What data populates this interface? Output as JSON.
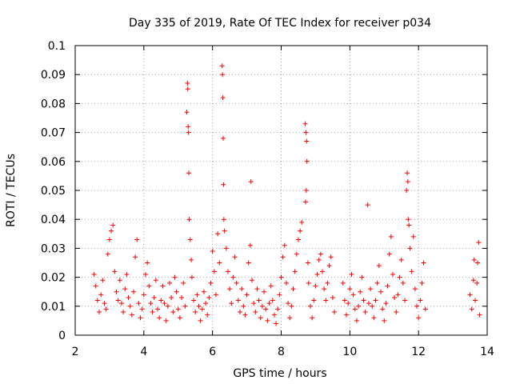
{
  "chart_data": {
    "type": "scatter",
    "title": "Day 335 of 2019, Rate Of TEC Index for receiver p034",
    "xlabel": "GPS time / hours",
    "ylabel": "ROTI / TECUs",
    "xlim": [
      2,
      14
    ],
    "ylim": [
      0,
      0.1
    ],
    "xticks": [
      "2",
      "4",
      "6",
      "8",
      "10",
      "12",
      "14"
    ],
    "yticks": [
      "0",
      "0.01",
      "0.02",
      "0.03",
      "0.04",
      "0.05",
      "0.06",
      "0.07",
      "0.08",
      "0.09",
      "0.1"
    ],
    "grid": true,
    "marker": "plus",
    "series": [
      {
        "name": "p034",
        "color": "#ff0000",
        "points": [
          [
            2.55,
            0.021
          ],
          [
            2.6,
            0.017
          ],
          [
            2.65,
            0.012
          ],
          [
            2.7,
            0.008
          ],
          [
            2.75,
            0.014
          ],
          [
            2.8,
            0.019
          ],
          [
            2.85,
            0.011
          ],
          [
            2.9,
            0.009
          ],
          [
            2.95,
            0.028
          ],
          [
            3.0,
            0.033
          ],
          [
            3.05,
            0.036
          ],
          [
            3.1,
            0.038
          ],
          [
            3.15,
            0.022
          ],
          [
            3.2,
            0.015
          ],
          [
            3.25,
            0.012
          ],
          [
            3.3,
            0.019
          ],
          [
            3.35,
            0.011
          ],
          [
            3.4,
            0.008
          ],
          [
            3.45,
            0.016
          ],
          [
            3.5,
            0.021
          ],
          [
            3.55,
            0.013
          ],
          [
            3.6,
            0.01
          ],
          [
            3.65,
            0.007
          ],
          [
            3.7,
            0.015
          ],
          [
            3.75,
            0.027
          ],
          [
            3.8,
            0.033
          ],
          [
            3.85,
            0.011
          ],
          [
            3.9,
            0.006
          ],
          [
            3.95,
            0.009
          ],
          [
            4.0,
            0.014
          ],
          [
            4.05,
            0.021
          ],
          [
            4.1,
            0.025
          ],
          [
            4.15,
            0.017
          ],
          [
            4.2,
            0.011
          ],
          [
            4.25,
            0.008
          ],
          [
            4.3,
            0.013
          ],
          [
            4.35,
            0.019
          ],
          [
            4.4,
            0.009
          ],
          [
            4.45,
            0.006
          ],
          [
            4.5,
            0.012
          ],
          [
            4.55,
            0.017
          ],
          [
            4.6,
            0.011
          ],
          [
            4.65,
            0.005
          ],
          [
            4.7,
            0.01
          ],
          [
            4.75,
            0.018
          ],
          [
            4.8,
            0.013
          ],
          [
            4.85,
            0.008
          ],
          [
            4.9,
            0.02
          ],
          [
            4.95,
            0.015
          ],
          [
            5.0,
            0.009
          ],
          [
            5.05,
            0.006
          ],
          [
            5.1,
            0.013
          ],
          [
            5.15,
            0.018
          ],
          [
            5.2,
            0.01
          ],
          [
            5.25,
            0.077
          ],
          [
            5.27,
            0.087
          ],
          [
            5.28,
            0.085
          ],
          [
            5.29,
            0.072
          ],
          [
            5.3,
            0.07
          ],
          [
            5.31,
            0.056
          ],
          [
            5.32,
            0.04
          ],
          [
            5.35,
            0.033
          ],
          [
            5.38,
            0.026
          ],
          [
            5.4,
            0.02
          ],
          [
            5.45,
            0.012
          ],
          [
            5.5,
            0.008
          ],
          [
            5.55,
            0.014
          ],
          [
            5.6,
            0.01
          ],
          [
            5.65,
            0.005
          ],
          [
            5.7,
            0.009
          ],
          [
            5.75,
            0.015
          ],
          [
            5.8,
            0.011
          ],
          [
            5.85,
            0.007
          ],
          [
            5.9,
            0.013
          ],
          [
            5.95,
            0.018
          ],
          [
            6.0,
            0.029
          ],
          [
            6.05,
            0.022
          ],
          [
            6.1,
            0.014
          ],
          [
            6.15,
            0.035
          ],
          [
            6.2,
            0.025
          ],
          [
            6.28,
            0.093
          ],
          [
            6.29,
            0.09
          ],
          [
            6.3,
            0.082
          ],
          [
            6.31,
            0.068
          ],
          [
            6.32,
            0.052
          ],
          [
            6.33,
            0.04
          ],
          [
            6.35,
            0.036
          ],
          [
            6.4,
            0.03
          ],
          [
            6.45,
            0.022
          ],
          [
            6.5,
            0.016
          ],
          [
            6.55,
            0.011
          ],
          [
            6.6,
            0.02
          ],
          [
            6.65,
            0.027
          ],
          [
            6.7,
            0.018
          ],
          [
            6.75,
            0.012
          ],
          [
            6.8,
            0.008
          ],
          [
            6.85,
            0.016
          ],
          [
            6.9,
            0.01
          ],
          [
            6.95,
            0.007
          ],
          [
            7.0,
            0.014
          ],
          [
            7.05,
            0.025
          ],
          [
            7.1,
            0.031
          ],
          [
            7.12,
            0.053
          ],
          [
            7.15,
            0.019
          ],
          [
            7.2,
            0.011
          ],
          [
            7.25,
            0.008
          ],
          [
            7.3,
            0.016
          ],
          [
            7.35,
            0.012
          ],
          [
            7.4,
            0.006
          ],
          [
            7.45,
            0.01
          ],
          [
            7.5,
            0.015
          ],
          [
            7.55,
            0.009
          ],
          [
            7.6,
            0.005
          ],
          [
            7.65,
            0.011
          ],
          [
            7.7,
            0.017
          ],
          [
            7.75,
            0.012
          ],
          [
            7.8,
            0.007
          ],
          [
            7.85,
            0.004
          ],
          [
            7.9,
            0.009
          ],
          [
            7.95,
            0.014
          ],
          [
            8.0,
            0.02
          ],
          [
            8.05,
            0.027
          ],
          [
            8.1,
            0.031
          ],
          [
            8.15,
            0.018
          ],
          [
            8.2,
            0.011
          ],
          [
            8.25,
            0.006
          ],
          [
            8.3,
            0.01
          ],
          [
            8.35,
            0.016
          ],
          [
            8.4,
            0.022
          ],
          [
            8.45,
            0.028
          ],
          [
            8.5,
            0.033
          ],
          [
            8.55,
            0.036
          ],
          [
            8.6,
            0.039
          ],
          [
            8.7,
            0.073
          ],
          [
            8.72,
            0.07
          ],
          [
            8.74,
            0.067
          ],
          [
            8.75,
            0.06
          ],
          [
            8.73,
            0.05
          ],
          [
            8.71,
            0.046
          ],
          [
            8.78,
            0.025
          ],
          [
            8.8,
            0.018
          ],
          [
            8.85,
            0.01
          ],
          [
            8.9,
            0.006
          ],
          [
            8.95,
            0.012
          ],
          [
            9.0,
            0.017
          ],
          [
            9.05,
            0.021
          ],
          [
            9.1,
            0.026
          ],
          [
            9.15,
            0.028
          ],
          [
            9.2,
            0.022
          ],
          [
            9.25,
            0.016
          ],
          [
            9.3,
            0.012
          ],
          [
            9.35,
            0.018
          ],
          [
            9.4,
            0.024
          ],
          [
            9.45,
            0.027
          ],
          [
            9.5,
            0.013
          ],
          [
            9.55,
            0.008
          ],
          [
            9.8,
            0.018
          ],
          [
            9.85,
            0.012
          ],
          [
            9.9,
            0.007
          ],
          [
            9.95,
            0.011
          ],
          [
            10.0,
            0.016
          ],
          [
            10.05,
            0.021
          ],
          [
            10.1,
            0.014
          ],
          [
            10.15,
            0.009
          ],
          [
            10.2,
            0.005
          ],
          [
            10.25,
            0.01
          ],
          [
            10.3,
            0.015
          ],
          [
            10.35,
            0.02
          ],
          [
            10.4,
            0.012
          ],
          [
            10.45,
            0.008
          ],
          [
            10.52,
            0.045
          ],
          [
            10.55,
            0.011
          ],
          [
            10.6,
            0.016
          ],
          [
            10.65,
            0.01
          ],
          [
            10.7,
            0.006
          ],
          [
            10.75,
            0.012
          ],
          [
            10.8,
            0.018
          ],
          [
            10.85,
            0.024
          ],
          [
            10.9,
            0.015
          ],
          [
            10.95,
            0.009
          ],
          [
            11.0,
            0.005
          ],
          [
            11.05,
            0.011
          ],
          [
            11.1,
            0.017
          ],
          [
            11.15,
            0.028
          ],
          [
            11.2,
            0.034
          ],
          [
            11.25,
            0.021
          ],
          [
            11.3,
            0.013
          ],
          [
            11.35,
            0.008
          ],
          [
            11.4,
            0.014
          ],
          [
            11.45,
            0.02
          ],
          [
            11.5,
            0.026
          ],
          [
            11.55,
            0.018
          ],
          [
            11.6,
            0.012
          ],
          [
            11.65,
            0.05
          ],
          [
            11.67,
            0.056
          ],
          [
            11.69,
            0.053
          ],
          [
            11.7,
            0.04
          ],
          [
            11.72,
            0.038
          ],
          [
            11.75,
            0.03
          ],
          [
            11.8,
            0.022
          ],
          [
            11.85,
            0.034
          ],
          [
            11.9,
            0.016
          ],
          [
            11.95,
            0.01
          ],
          [
            12.0,
            0.006
          ],
          [
            12.05,
            0.012
          ],
          [
            12.1,
            0.018
          ],
          [
            12.15,
            0.025
          ],
          [
            12.2,
            0.009
          ],
          [
            13.5,
            0.014
          ],
          [
            13.55,
            0.009
          ],
          [
            13.6,
            0.019
          ],
          [
            13.62,
            0.026
          ],
          [
            13.65,
            0.012
          ],
          [
            13.7,
            0.018
          ],
          [
            13.72,
            0.025
          ],
          [
            13.75,
            0.032
          ],
          [
            13.78,
            0.007
          ]
        ]
      }
    ]
  }
}
